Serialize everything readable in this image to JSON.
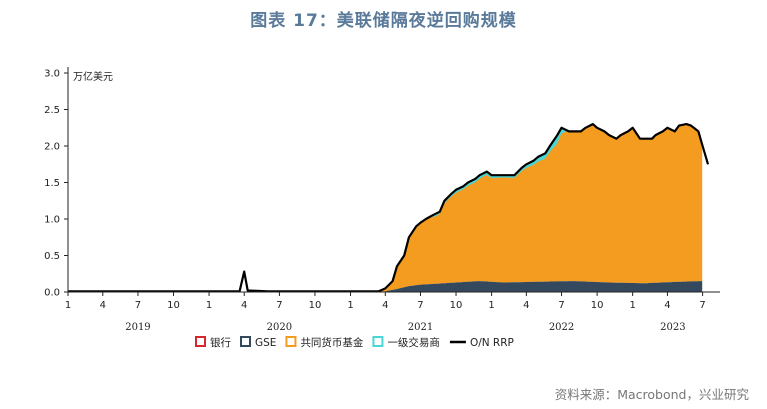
{
  "title": "图表 17：美联储隔夜逆回购规模",
  "source": "资料来源：Macrobond，兴业研究",
  "chart_data": {
    "type": "area",
    "unit_label": "万亿美元",
    "ylim": [
      0,
      3.0
    ],
    "y_ticks": [
      {
        "value": 0,
        "label": "0.0"
      },
      {
        "value": 0.5,
        "label": "0.5"
      },
      {
        "value": 1.0,
        "label": "1.0"
      },
      {
        "value": 1.5,
        "label": "1.5"
      },
      {
        "value": 2.0,
        "label": "2.0"
      },
      {
        "value": 2.5,
        "label": "2.5"
      },
      {
        "value": 3.0,
        "label": "3.0"
      }
    ],
    "xlim": [
      "2019-01-01",
      "2023-08-15"
    ],
    "x_month_ticks": [
      {
        "date": "2019-01-01",
        "label": "1"
      },
      {
        "date": "2019-04-01",
        "label": "4"
      },
      {
        "date": "2019-07-01",
        "label": "7"
      },
      {
        "date": "2019-10-01",
        "label": "10"
      },
      {
        "date": "2020-01-01",
        "label": "1"
      },
      {
        "date": "2020-04-01",
        "label": "4"
      },
      {
        "date": "2020-07-01",
        "label": "7"
      },
      {
        "date": "2020-10-01",
        "label": "10"
      },
      {
        "date": "2021-01-01",
        "label": "1"
      },
      {
        "date": "2021-04-01",
        "label": "4"
      },
      {
        "date": "2021-07-01",
        "label": "7"
      },
      {
        "date": "2021-10-01",
        "label": "10"
      },
      {
        "date": "2022-01-01",
        "label": "1"
      },
      {
        "date": "2022-04-01",
        "label": "4"
      },
      {
        "date": "2022-07-01",
        "label": "7"
      },
      {
        "date": "2022-10-01",
        "label": "10"
      },
      {
        "date": "2023-01-01",
        "label": "1"
      },
      {
        "date": "2023-04-01",
        "label": "4"
      },
      {
        "date": "2023-07-01",
        "label": "7"
      }
    ],
    "x_year_labels": [
      {
        "date": "2019-07-01",
        "label": "2019"
      },
      {
        "date": "2020-07-01",
        "label": "2020"
      },
      {
        "date": "2021-07-01",
        "label": "2021"
      },
      {
        "date": "2022-07-01",
        "label": "2022"
      },
      {
        "date": "2023-04-15",
        "label": "2023"
      }
    ],
    "legend": [
      {
        "name": "银行",
        "color": "#d7262e",
        "kind": "box"
      },
      {
        "name": "GSE",
        "color": "#34495e",
        "kind": "box"
      },
      {
        "name": "共同货币基金",
        "color": "#f39c1f",
        "kind": "box"
      },
      {
        "name": "一级交易商",
        "color": "#4ad6d6",
        "kind": "box"
      },
      {
        "name": "O/N RRP",
        "color": "#000000",
        "kind": "line"
      }
    ],
    "series": [
      {
        "name": "O/N RRP",
        "x": [
          "2019-01-01",
          "2019-07-01",
          "2020-01-01",
          "2020-03-20",
          "2020-04-01",
          "2020-04-10",
          "2020-06-01",
          "2021-01-01",
          "2021-03-15",
          "2021-04-01",
          "2021-04-20",
          "2021-05-01",
          "2021-05-20",
          "2021-06-01",
          "2021-06-20",
          "2021-07-01",
          "2021-07-15",
          "2021-08-01",
          "2021-08-20",
          "2021-09-01",
          "2021-09-20",
          "2021-10-01",
          "2021-10-20",
          "2021-11-01",
          "2021-11-20",
          "2021-12-01",
          "2021-12-20",
          "2022-01-01",
          "2022-02-01",
          "2022-03-01",
          "2022-03-20",
          "2022-04-01",
          "2022-04-20",
          "2022-05-01",
          "2022-05-20",
          "2022-06-01",
          "2022-06-20",
          "2022-07-01",
          "2022-07-20",
          "2022-08-01",
          "2022-08-20",
          "2022-09-01",
          "2022-09-20",
          "2022-10-01",
          "2022-10-20",
          "2022-11-01",
          "2022-11-20",
          "2022-12-01",
          "2022-12-20",
          "2023-01-01",
          "2023-01-20",
          "2023-02-01",
          "2023-02-20",
          "2023-03-01",
          "2023-03-20",
          "2023-04-01",
          "2023-04-20",
          "2023-05-01",
          "2023-05-20",
          "2023-06-01",
          "2023-06-20",
          "2023-07-01",
          "2023-07-15"
        ],
        "values": [
          0.01,
          0.01,
          0.01,
          0.01,
          0.28,
          0.02,
          0.01,
          0.01,
          0.01,
          0.05,
          0.15,
          0.35,
          0.5,
          0.75,
          0.9,
          0.95,
          1.0,
          1.05,
          1.1,
          1.25,
          1.35,
          1.4,
          1.45,
          1.5,
          1.55,
          1.6,
          1.65,
          1.6,
          1.6,
          1.6,
          1.7,
          1.75,
          1.8,
          1.85,
          1.9,
          2.0,
          2.15,
          2.25,
          2.2,
          2.2,
          2.2,
          2.25,
          2.3,
          2.25,
          2.2,
          2.15,
          2.1,
          2.15,
          2.2,
          2.25,
          2.1,
          2.1,
          2.1,
          2.15,
          2.2,
          2.25,
          2.2,
          2.28,
          2.3,
          2.28,
          2.2,
          2.0,
          1.75
        ],
        "color": "#000000"
      },
      {
        "name": "GSE",
        "x": [
          "2021-04-01",
          "2021-05-01",
          "2021-06-01",
          "2021-07-01",
          "2021-09-01",
          "2021-12-01",
          "2022-02-01",
          "2022-05-01",
          "2022-08-01",
          "2022-11-01",
          "2023-02-01",
          "2023-05-01",
          "2023-06-30"
        ],
        "values": [
          0.01,
          0.04,
          0.08,
          0.1,
          0.12,
          0.15,
          0.13,
          0.14,
          0.15,
          0.13,
          0.12,
          0.14,
          0.15
        ],
        "color": "#34495e"
      },
      {
        "name": "一级交易商",
        "x": [
          "2021-08-01",
          "2021-12-01",
          "2022-02-01",
          "2022-04-01",
          "2022-06-01",
          "2022-06-20",
          "2022-07-10"
        ],
        "values": [
          0.03,
          0.05,
          0.03,
          0.05,
          0.08,
          0.12,
          0.04
        ],
        "color": "#4ad6d6"
      }
    ]
  }
}
